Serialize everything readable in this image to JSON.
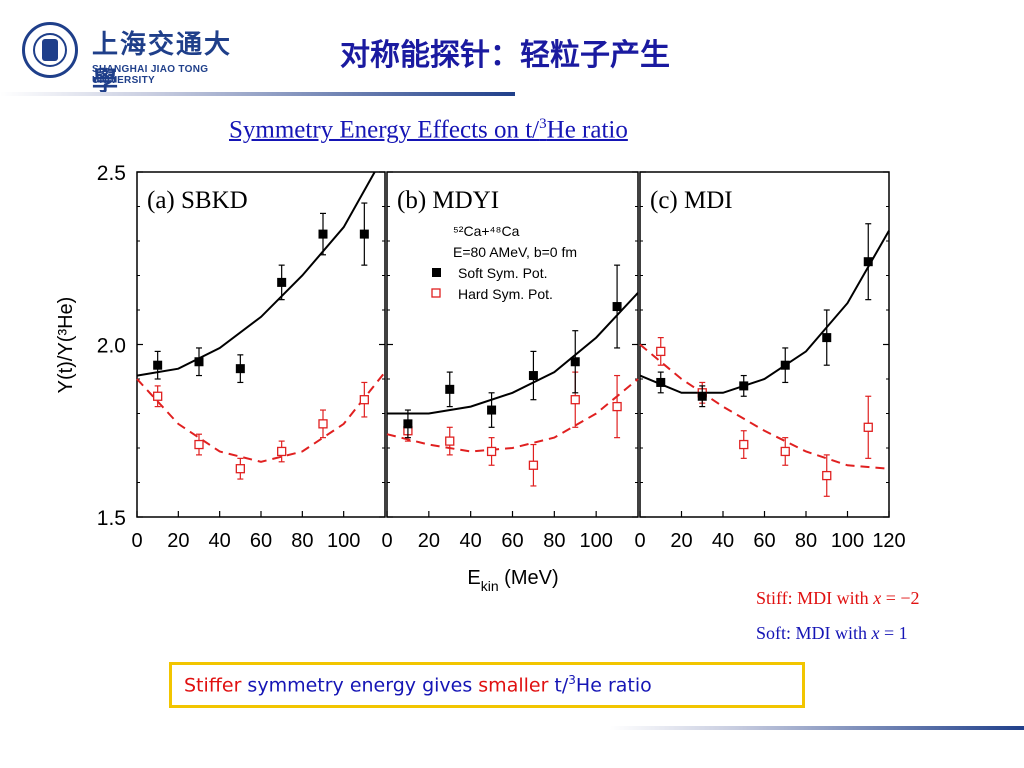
{
  "header": {
    "logo_cn": "上海交通大學",
    "logo_en": "SHANGHAI JIAO TONG UNIVERSITY",
    "title": "对称能探针：轻粒子产生"
  },
  "subtitle": {
    "pre": "Symmetry Energy Effects on t/",
    "sup": "3",
    "post": "He ratio"
  },
  "notes": {
    "stiff_label": "Stiff: MDI with ",
    "stiff_var": "x",
    "stiff_value": " = −2",
    "soft_label": "Soft: MDI with ",
    "soft_var": "x",
    "soft_value": " = 1"
  },
  "conclusion": {
    "w1": "Stiffer",
    "w2": " symmetry energy gives ",
    "w3": "smaller",
    "w4": " t/",
    "sup": "3",
    "w5": "He ratio"
  },
  "chart_data": {
    "type": "scatter",
    "ylabel": "Y(t)/Y(³He)",
    "xlabel": "E_kin (MeV)",
    "xlabel_main": "E",
    "xlabel_sub": "kin",
    "xlabel_unit": " (MeV)",
    "ylim": [
      1.5,
      2.5
    ],
    "y_ticks": [
      "1.5",
      "2.0",
      "2.5"
    ],
    "x_tick_values": [
      0,
      20,
      40,
      60,
      80,
      100
    ],
    "x_tick_labels_panel1": [
      "0",
      "20",
      "40",
      "60",
      "80",
      "100"
    ],
    "x_tick_labels_panel2": [
      "0",
      "20",
      "40",
      "60",
      "80",
      "100"
    ],
    "x_tick_labels_panel3": [
      "0",
      "20",
      "40",
      "60",
      "80",
      "100",
      "120"
    ],
    "annotation": {
      "reaction": "⁵²Ca+⁴⁸Ca",
      "conditions": "E=80 AMeV, b=0 fm"
    },
    "legend": [
      {
        "name": "Soft Sym. Pot.",
        "marker": "filled-square",
        "color": "#000000"
      },
      {
        "name": "Hard Sym. Pot.",
        "marker": "open-square",
        "color": "#e02020"
      }
    ],
    "panels": [
      {
        "label": "(a) SBKD",
        "xlim": [
          0,
          120
        ],
        "soft_points": {
          "x": [
            10,
            30,
            50,
            70,
            90,
            110
          ],
          "y": [
            1.94,
            1.95,
            1.93,
            2.18,
            2.32,
            2.32
          ],
          "err": [
            0.04,
            0.04,
            0.04,
            0.05,
            0.06,
            0.09
          ]
        },
        "hard_points": {
          "x": [
            10,
            30,
            50,
            70,
            90,
            110
          ],
          "y": [
            1.85,
            1.71,
            1.64,
            1.69,
            1.77,
            1.84
          ],
          "err": [
            0.03,
            0.03,
            0.03,
            0.03,
            0.04,
            0.05
          ]
        },
        "soft_curve": {
          "x": [
            0,
            20,
            40,
            60,
            80,
            100,
            115
          ],
          "y": [
            1.91,
            1.93,
            1.99,
            2.08,
            2.2,
            2.34,
            2.5
          ]
        },
        "hard_curve": {
          "x": [
            0,
            20,
            40,
            60,
            80,
            100,
            120
          ],
          "y": [
            1.9,
            1.77,
            1.69,
            1.66,
            1.69,
            1.77,
            1.92
          ]
        }
      },
      {
        "label": "(b) MDYI",
        "xlim": [
          0,
          120
        ],
        "soft_points": {
          "x": [
            10,
            30,
            50,
            70,
            90,
            110
          ],
          "y": [
            1.77,
            1.87,
            1.81,
            1.91,
            1.95,
            2.11
          ],
          "err": [
            0.04,
            0.05,
            0.05,
            0.07,
            0.09,
            0.12
          ]
        },
        "hard_points": {
          "x": [
            10,
            30,
            50,
            70,
            90,
            110
          ],
          "y": [
            1.75,
            1.72,
            1.69,
            1.65,
            1.84,
            1.82
          ],
          "err": [
            0.03,
            0.04,
            0.04,
            0.06,
            0.08,
            0.09
          ]
        },
        "soft_curve": {
          "x": [
            0,
            20,
            40,
            60,
            80,
            100,
            120
          ],
          "y": [
            1.8,
            1.8,
            1.82,
            1.86,
            1.92,
            2.02,
            2.15
          ]
        },
        "hard_curve": {
          "x": [
            0,
            20,
            40,
            60,
            80,
            100,
            120
          ],
          "y": [
            1.74,
            1.71,
            1.69,
            1.7,
            1.73,
            1.8,
            1.9
          ]
        }
      },
      {
        "label": "(c) MDI",
        "xlim": [
          0,
          120
        ],
        "soft_points": {
          "x": [
            10,
            30,
            50,
            70,
            90,
            110
          ],
          "y": [
            1.89,
            1.85,
            1.88,
            1.94,
            2.02,
            2.24
          ],
          "err": [
            0.03,
            0.03,
            0.03,
            0.05,
            0.08,
            0.11
          ]
        },
        "hard_points": {
          "x": [
            10,
            30,
            50,
            70,
            90,
            110
          ],
          "y": [
            1.98,
            1.86,
            1.71,
            1.69,
            1.62,
            1.76
          ],
          "err": [
            0.04,
            0.03,
            0.04,
            0.04,
            0.06,
            0.09
          ]
        },
        "soft_curve": {
          "x": [
            0,
            20,
            40,
            60,
            80,
            100,
            120
          ],
          "y": [
            1.91,
            1.86,
            1.86,
            1.9,
            1.98,
            2.12,
            2.33
          ]
        },
        "hard_curve": {
          "x": [
            0,
            20,
            40,
            60,
            80,
            100,
            120
          ],
          "y": [
            2.0,
            1.9,
            1.82,
            1.75,
            1.69,
            1.65,
            1.64
          ]
        }
      }
    ]
  }
}
